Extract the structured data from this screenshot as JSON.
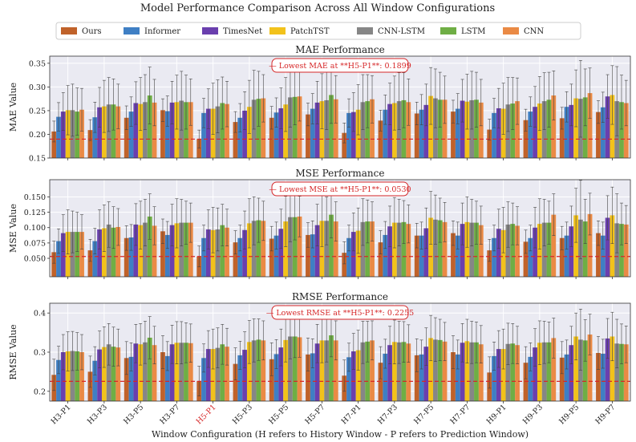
{
  "title": "Model Performance Comparison Across All Window Configurations",
  "xlabel": "Window Configuration (H refers to History Window - P refers to Prediction Window)",
  "colors": {
    "Ours": "#c0622a",
    "Informer": "#3f7fc4",
    "TimesNet": "#6a3fae",
    "PatchTST": "#f2c21b",
    "CNN-LSTM": "#868686",
    "LSTM": "#6fae45",
    "CNN": "#ea8a45",
    "highlight": "#d62728",
    "panel_bg": "#eaeaf2"
  },
  "chart_data": {
    "type": "bar",
    "categories": [
      "H3-P1",
      "H3-P3",
      "H3-P5",
      "H3-P7",
      "H5-P1",
      "H5-P3",
      "H5-P5",
      "H5-P7",
      "H7-P1",
      "H7-P3",
      "H7-P5",
      "H7-P7",
      "H9-P1",
      "H9-P3",
      "H9-P5",
      "H9-P7"
    ],
    "highlight_category": "H5-P1",
    "legend": [
      "Ours",
      "Informer",
      "TimesNet",
      "PatchTST",
      "CNN-LSTM",
      "LSTM",
      "CNN"
    ],
    "panels": [
      {
        "key": "mae",
        "title": "MAE Performance",
        "ylabel": "MAE Value",
        "ylim": [
          0.15,
          0.365
        ],
        "yticks": [
          0.15,
          0.2,
          0.25,
          0.3,
          0.35
        ],
        "ytick_labels": [
          "0.15",
          "0.20",
          "0.25",
          "0.30",
          "0.35"
        ],
        "baseline": 0.1899,
        "annotation": "— Lowest MAE at **H5-P1**: 0.1899",
        "series": [
          {
            "name": "Ours",
            "values": [
              0.206,
              0.209,
              0.235,
              0.251,
              0.19,
              0.226,
              0.235,
              0.242,
              0.203,
              0.229,
              0.244,
              0.248,
              0.21,
              0.23,
              0.234,
              0.247
            ],
            "errors": [
              0.022,
              0.022,
              0.025,
              0.024,
              0.019,
              0.022,
              0.024,
              0.024,
              0.021,
              0.022,
              0.024,
              0.024,
              0.022,
              0.023,
              0.023,
              0.024
            ]
          },
          {
            "name": "Informer",
            "values": [
              0.237,
              0.236,
              0.248,
              0.249,
              0.245,
              0.235,
              0.246,
              0.254,
              0.245,
              0.252,
              0.252,
              0.254,
              0.245,
              0.248,
              0.258,
              0.257
            ],
            "errors": [
              0.03,
              0.032,
              0.031,
              0.032,
              0.031,
              0.03,
              0.031,
              0.032,
              0.03,
              0.031,
              0.032,
              0.032,
              0.031,
              0.031,
              0.032,
              0.032
            ]
          },
          {
            "name": "TimesNet",
            "values": [
              0.248,
              0.257,
              0.266,
              0.267,
              0.254,
              0.25,
              0.255,
              0.267,
              0.247,
              0.264,
              0.262,
              0.271,
              0.255,
              0.258,
              0.262,
              0.28
            ],
            "errors": [
              0.04,
              0.042,
              0.045,
              0.045,
              0.042,
              0.04,
              0.043,
              0.045,
              0.041,
              0.044,
              0.044,
              0.045,
              0.042,
              0.043,
              0.044,
              0.046
            ]
          },
          {
            "name": "PatchTST",
            "values": [
              0.251,
              0.259,
              0.264,
              0.268,
              0.254,
              0.258,
              0.263,
              0.27,
              0.252,
              0.266,
              0.281,
              0.269,
              0.254,
              0.265,
              0.276,
              0.283
            ],
            "errors": [
              0.052,
              0.055,
              0.056,
              0.057,
              0.054,
              0.056,
              0.057,
              0.058,
              0.053,
              0.057,
              0.06,
              0.058,
              0.054,
              0.057,
              0.06,
              0.062
            ]
          },
          {
            "name": "CNN-LSTM",
            "values": [
              0.251,
              0.263,
              0.268,
              0.271,
              0.259,
              0.273,
              0.278,
              0.272,
              0.268,
              0.27,
              0.276,
              0.272,
              0.263,
              0.27,
              0.275,
              0.27
            ],
            "errors": [
              0.055,
              0.057,
              0.058,
              0.062,
              0.056,
              0.062,
              0.063,
              0.062,
              0.058,
              0.06,
              0.062,
              0.061,
              0.057,
              0.06,
              0.081,
              0.073
            ]
          },
          {
            "name": "LSTM",
            "values": [
              0.248,
              0.263,
              0.282,
              0.268,
              0.266,
              0.275,
              0.279,
              0.283,
              0.27,
              0.272,
              0.273,
              0.273,
              0.265,
              0.273,
              0.278,
              0.268
            ],
            "errors": [
              0.05,
              0.054,
              0.06,
              0.057,
              0.055,
              0.058,
              0.059,
              0.06,
              0.056,
              0.058,
              0.058,
              0.058,
              0.055,
              0.058,
              0.06,
              0.057
            ]
          },
          {
            "name": "CNN",
            "values": [
              0.252,
              0.259,
              0.267,
              0.268,
              0.264,
              0.276,
              0.28,
              0.274,
              0.274,
              0.268,
              0.273,
              0.267,
              0.27,
              0.282,
              0.287,
              0.266
            ],
            "errors": [
              0.045,
              0.047,
              0.049,
              0.049,
              0.048,
              0.05,
              0.052,
              0.05,
              0.05,
              0.049,
              0.05,
              0.049,
              0.049,
              0.052,
              0.053,
              0.048
            ]
          }
        ]
      },
      {
        "key": "mse",
        "title": "MSE Performance",
        "ylabel": "MSE Value",
        "ylim": [
          0.02,
          0.178
        ],
        "yticks": [
          0.05,
          0.075,
          0.1,
          0.125,
          0.15
        ],
        "ytick_labels": [
          "0.050",
          "0.075",
          "0.100",
          "0.125",
          "0.150"
        ],
        "baseline": 0.053,
        "annotation": "— Lowest MSE at **H5-P1**: 0.0530",
        "series": [
          {
            "name": "Ours",
            "values": [
              0.06,
              0.063,
              0.083,
              0.094,
              0.053,
              0.076,
              0.082,
              0.088,
              0.059,
              0.076,
              0.087,
              0.091,
              0.063,
              0.077,
              0.083,
              0.091
            ],
            "errors": [
              0.018,
              0.018,
              0.02,
              0.02,
              0.017,
              0.019,
              0.02,
              0.02,
              0.018,
              0.019,
              0.02,
              0.02,
              0.018,
              0.019,
              0.019,
              0.02
            ]
          },
          {
            "name": "Informer",
            "values": [
              0.078,
              0.078,
              0.084,
              0.088,
              0.083,
              0.083,
              0.087,
              0.089,
              0.083,
              0.088,
              0.087,
              0.087,
              0.083,
              0.083,
              0.087,
              0.087
            ],
            "errors": [
              0.02,
              0.021,
              0.021,
              0.022,
              0.021,
              0.021,
              0.022,
              0.022,
              0.021,
              0.022,
              0.022,
              0.022,
              0.021,
              0.021,
              0.022,
              0.022
            ]
          },
          {
            "name": "TimesNet",
            "values": [
              0.091,
              0.097,
              0.105,
              0.104,
              0.097,
              0.096,
              0.098,
              0.104,
              0.093,
              0.102,
              0.099,
              0.106,
              0.098,
              0.1,
              0.102,
              0.116
            ],
            "errors": [
              0.03,
              0.032,
              0.034,
              0.034,
              0.032,
              0.031,
              0.032,
              0.034,
              0.031,
              0.033,
              0.033,
              0.034,
              0.032,
              0.033,
              0.033,
              0.036
            ]
          },
          {
            "name": "PatchTST",
            "values": [
              0.093,
              0.099,
              0.104,
              0.107,
              0.096,
              0.107,
              0.11,
              0.111,
              0.095,
              0.108,
              0.116,
              0.109,
              0.096,
              0.106,
              0.12,
              0.12
            ],
            "errors": [
              0.036,
              0.038,
              0.039,
              0.04,
              0.037,
              0.04,
              0.041,
              0.042,
              0.037,
              0.041,
              0.043,
              0.041,
              0.037,
              0.041,
              0.044,
              0.046
            ]
          },
          {
            "name": "CNN-LSTM",
            "values": [
              0.093,
              0.105,
              0.108,
              0.108,
              0.097,
              0.111,
              0.117,
              0.111,
              0.109,
              0.108,
              0.113,
              0.108,
              0.105,
              0.108,
              0.113,
              0.107
            ],
            "errors": [
              0.034,
              0.037,
              0.038,
              0.038,
              0.035,
              0.039,
              0.04,
              0.039,
              0.038,
              0.038,
              0.04,
              0.038,
              0.037,
              0.038,
              0.064,
              0.048
            ]
          },
          {
            "name": "LSTM",
            "values": [
              0.093,
              0.1,
              0.118,
              0.108,
              0.104,
              0.112,
              0.117,
              0.121,
              0.11,
              0.109,
              0.112,
              0.108,
              0.106,
              0.108,
              0.11,
              0.106
            ],
            "errors": [
              0.032,
              0.034,
              0.037,
              0.035,
              0.034,
              0.036,
              0.037,
              0.038,
              0.035,
              0.035,
              0.036,
              0.035,
              0.034,
              0.035,
              0.036,
              0.034
            ]
          },
          {
            "name": "CNN",
            "values": [
              0.093,
              0.101,
              0.103,
              0.108,
              0.1,
              0.111,
              0.118,
              0.11,
              0.11,
              0.106,
              0.109,
              0.104,
              0.103,
              0.121,
              0.122,
              0.105
            ],
            "errors": [
              0.028,
              0.03,
              0.031,
              0.032,
              0.03,
              0.032,
              0.033,
              0.032,
              0.032,
              0.031,
              0.032,
              0.031,
              0.031,
              0.034,
              0.034,
              0.031
            ]
          }
        ]
      },
      {
        "key": "rmse",
        "title": "RMSE Performance",
        "ylabel": "RMSE Value",
        "ylim": [
          0.175,
          0.425
        ],
        "yticks": [
          0.2,
          0.3,
          0.4
        ],
        "ytick_labels": [
          "0.2",
          "0.3",
          "0.4"
        ],
        "baseline": 0.2255,
        "annotation": "— Lowest RMSE at **H5-P1**: 0.2255",
        "series": [
          {
            "name": "Ours",
            "values": [
              0.242,
              0.25,
              0.285,
              0.3,
              0.226,
              0.27,
              0.282,
              0.294,
              0.24,
              0.273,
              0.292,
              0.3,
              0.248,
              0.273,
              0.286,
              0.298
            ],
            "errors": [
              0.04,
              0.04,
              0.042,
              0.042,
              0.038,
              0.041,
              0.042,
              0.042,
              0.04,
              0.041,
              0.042,
              0.042,
              0.04,
              0.041,
              0.041,
              0.042
            ]
          },
          {
            "name": "Informer",
            "values": [
              0.28,
              0.278,
              0.288,
              0.29,
              0.285,
              0.292,
              0.295,
              0.297,
              0.287,
              0.296,
              0.294,
              0.294,
              0.29,
              0.288,
              0.294,
              0.296
            ],
            "errors": [
              0.035,
              0.036,
              0.036,
              0.037,
              0.036,
              0.036,
              0.037,
              0.037,
              0.036,
              0.037,
              0.037,
              0.037,
              0.036,
              0.036,
              0.037,
              0.037
            ]
          },
          {
            "name": "TimesNet",
            "values": [
              0.3,
              0.307,
              0.322,
              0.32,
              0.308,
              0.306,
              0.312,
              0.322,
              0.302,
              0.318,
              0.314,
              0.324,
              0.308,
              0.312,
              0.318,
              0.335
            ],
            "errors": [
              0.045,
              0.047,
              0.049,
              0.049,
              0.047,
              0.046,
              0.047,
              0.049,
              0.046,
              0.048,
              0.048,
              0.049,
              0.047,
              0.048,
              0.048,
              0.051
            ]
          },
          {
            "name": "PatchTST",
            "values": [
              0.302,
              0.313,
              0.32,
              0.324,
              0.308,
              0.326,
              0.331,
              0.33,
              0.305,
              0.326,
              0.336,
              0.328,
              0.308,
              0.324,
              0.34,
              0.34
            ],
            "errors": [
              0.05,
              0.052,
              0.053,
              0.054,
              0.051,
              0.055,
              0.056,
              0.057,
              0.051,
              0.056,
              0.058,
              0.056,
              0.051,
              0.056,
              0.06,
              0.062
            ]
          },
          {
            "name": "CNN-LSTM",
            "values": [
              0.303,
              0.32,
              0.325,
              0.324,
              0.311,
              0.33,
              0.34,
              0.33,
              0.325,
              0.325,
              0.332,
              0.325,
              0.321,
              0.325,
              0.332,
              0.322
            ],
            "errors": [
              0.05,
              0.053,
              0.054,
              0.054,
              0.051,
              0.055,
              0.057,
              0.055,
              0.054,
              0.054,
              0.056,
              0.054,
              0.053,
              0.054,
              0.078,
              0.062
            ]
          },
          {
            "name": "LSTM",
            "values": [
              0.302,
              0.314,
              0.337,
              0.324,
              0.32,
              0.332,
              0.34,
              0.343,
              0.327,
              0.326,
              0.331,
              0.325,
              0.322,
              0.325,
              0.33,
              0.321
            ],
            "errors": [
              0.048,
              0.05,
              0.054,
              0.051,
              0.051,
              0.053,
              0.054,
              0.055,
              0.052,
              0.052,
              0.053,
              0.052,
              0.051,
              0.052,
              0.053,
              0.051
            ]
          },
          {
            "name": "CNN",
            "values": [
              0.3,
              0.312,
              0.318,
              0.323,
              0.314,
              0.33,
              0.338,
              0.33,
              0.33,
              0.322,
              0.327,
              0.32,
              0.318,
              0.336,
              0.345,
              0.32
            ],
            "errors": [
              0.045,
              0.047,
              0.048,
              0.049,
              0.047,
              0.05,
              0.051,
              0.05,
              0.05,
              0.048,
              0.049,
              0.048,
              0.048,
              0.051,
              0.052,
              0.047
            ]
          }
        ]
      }
    ]
  }
}
